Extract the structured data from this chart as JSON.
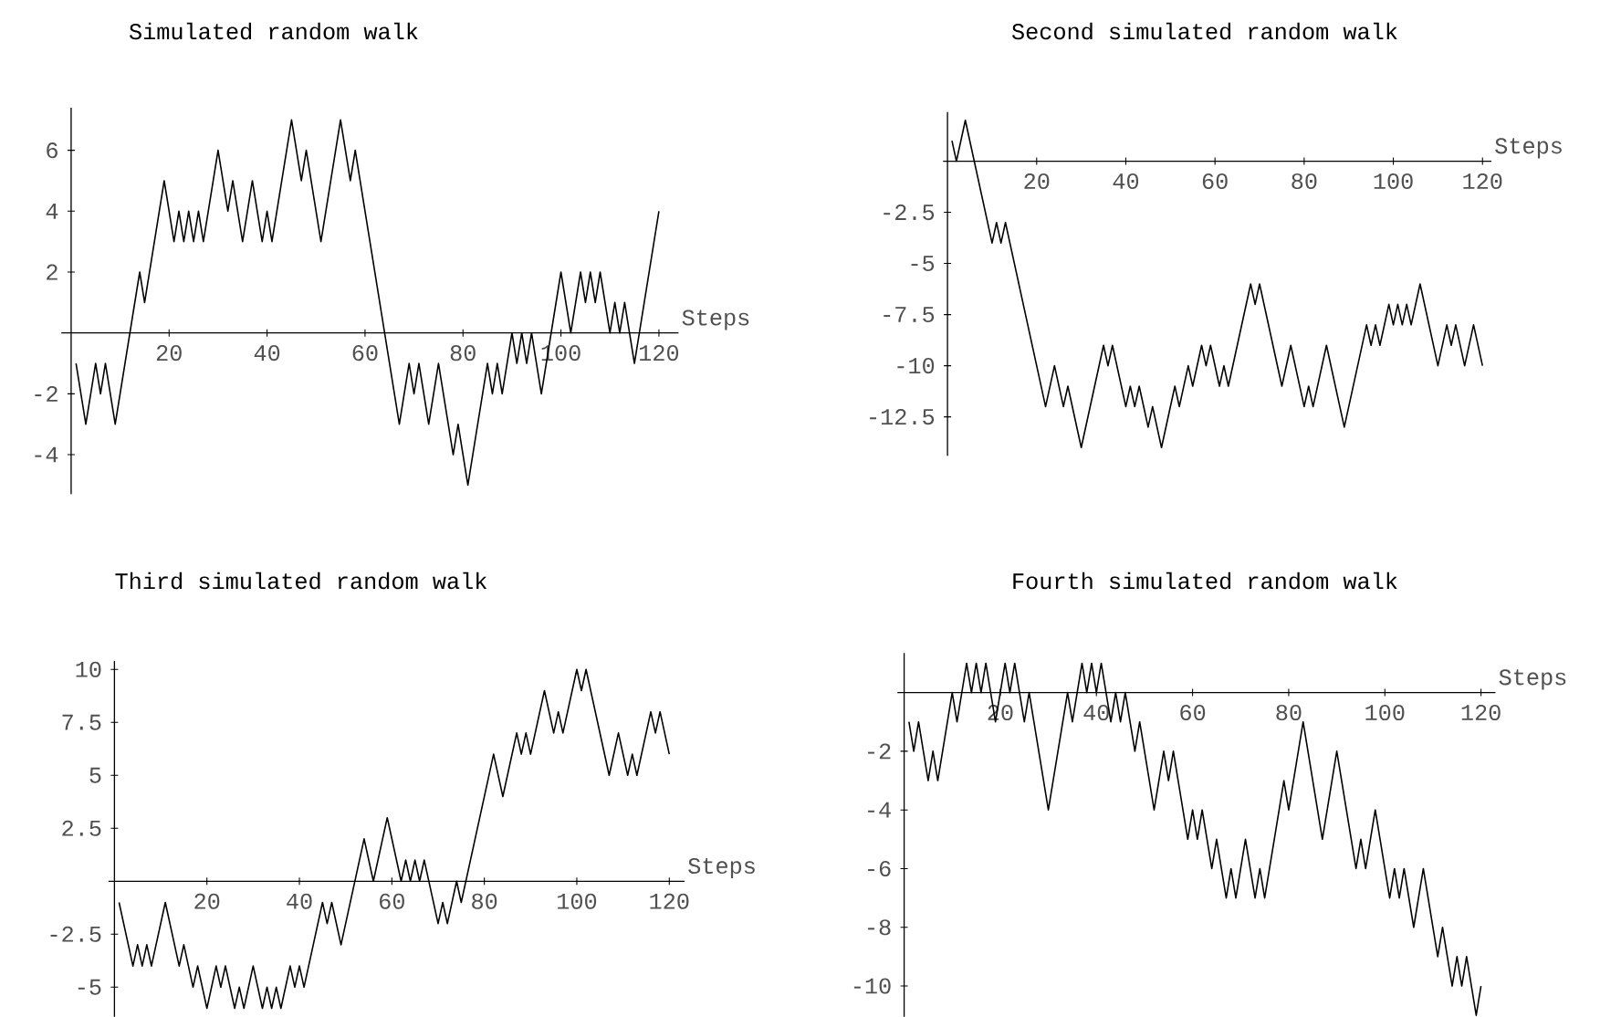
{
  "chart_data": [
    {
      "type": "line",
      "title": "Simulated random walk",
      "xlabel": "Steps",
      "color": "#000000",
      "x": [
        1,
        3,
        5,
        6,
        7,
        9,
        14,
        15,
        19,
        21,
        22,
        23,
        24,
        25,
        26,
        27,
        30,
        32,
        33,
        35,
        37,
        39,
        40,
        41,
        45,
        47,
        48,
        51,
        55,
        57,
        58,
        67,
        69,
        70,
        71,
        73,
        75,
        78,
        79,
        81,
        85,
        86,
        87,
        88,
        90,
        91,
        92,
        93,
        94,
        96,
        100,
        102,
        104,
        105,
        106,
        107,
        108,
        110,
        111,
        112,
        113,
        115,
        120
      ],
      "values": [
        -1,
        -3,
        -1,
        -2,
        -1,
        -3,
        2,
        1,
        5,
        3,
        4,
        3,
        4,
        3,
        4,
        3,
        6,
        4,
        5,
        3,
        5,
        3,
        4,
        3,
        7,
        5,
        6,
        3,
        7,
        5,
        6,
        -3,
        -1,
        -2,
        -1,
        -3,
        -1,
        -4,
        -3,
        -5,
        -1,
        -2,
        -1,
        -2,
        0,
        -1,
        0,
        -1,
        0,
        -2,
        2,
        0,
        2,
        1,
        2,
        1,
        2,
        0,
        1,
        0,
        1,
        -1,
        4
      ],
      "xlim": [
        -2,
        124
      ],
      "ylim": [
        -5.3,
        7.4
      ],
      "xticks": [
        20,
        40,
        60,
        80,
        100,
        120
      ],
      "yticks": [
        -4,
        -2,
        2,
        4,
        6
      ]
    },
    {
      "type": "line",
      "title": "Second simulated random walk",
      "xlabel": "Steps",
      "color": "#000000",
      "x": [
        1,
        2,
        4,
        10,
        11,
        12,
        13,
        22,
        24,
        26,
        27,
        30,
        35,
        36,
        37,
        40,
        41,
        42,
        43,
        45,
        46,
        48,
        51,
        52,
        54,
        55,
        57,
        58,
        59,
        61,
        62,
        63,
        68,
        69,
        70,
        75,
        77,
        80,
        81,
        82,
        85,
        89,
        94,
        95,
        96,
        97,
        99,
        100,
        101,
        102,
        103,
        104,
        106,
        110,
        112,
        113,
        114,
        116,
        118,
        120
      ],
      "values": [
        1,
        0,
        2,
        -4,
        -3,
        -4,
        -3,
        -12,
        -10,
        -12,
        -11,
        -14,
        -9,
        -10,
        -9,
        -12,
        -11,
        -12,
        -11,
        -13,
        -12,
        -14,
        -11,
        -12,
        -10,
        -11,
        -9,
        -10,
        -9,
        -11,
        -10,
        -11,
        -6,
        -7,
        -6,
        -11,
        -9,
        -12,
        -11,
        -12,
        -9,
        -13,
        -8,
        -9,
        -8,
        -9,
        -7,
        -8,
        -7,
        -8,
        -7,
        -8,
        -6,
        -10,
        -8,
        -9,
        -8,
        -10,
        -8,
        -10
      ],
      "xlim": [
        -1,
        122
      ],
      "ylim": [
        -14.4,
        2.4
      ],
      "xticks": [
        20,
        40,
        60,
        80,
        100,
        120
      ],
      "yticks": [
        -12.5,
        -10,
        -7.5,
        -5,
        -2.5
      ]
    },
    {
      "type": "line",
      "title": "Third simulated random walk",
      "xlabel": "Steps",
      "color": "#000000",
      "x": [
        1,
        4,
        5,
        6,
        7,
        8,
        11,
        14,
        15,
        17,
        18,
        20,
        22,
        23,
        24,
        26,
        27,
        28,
        30,
        32,
        33,
        34,
        35,
        36,
        38,
        39,
        40,
        41,
        45,
        46,
        47,
        49,
        54,
        56,
        59,
        62,
        63,
        64,
        65,
        66,
        67,
        70,
        71,
        72,
        74,
        75,
        82,
        84,
        87,
        88,
        89,
        90,
        93,
        95,
        96,
        97,
        100,
        101,
        102,
        107,
        109,
        111,
        112,
        113,
        116,
        117,
        118,
        120
      ],
      "values": [
        -1,
        -4,
        -3,
        -4,
        -3,
        -4,
        -1,
        -4,
        -3,
        -5,
        -4,
        -6,
        -4,
        -5,
        -4,
        -6,
        -5,
        -6,
        -4,
        -6,
        -5,
        -6,
        -5,
        -6,
        -4,
        -5,
        -4,
        -5,
        -1,
        -2,
        -1,
        -3,
        2,
        0,
        3,
        0,
        1,
        0,
        1,
        0,
        1,
        -2,
        -1,
        -2,
        0,
        -1,
        6,
        4,
        7,
        6,
        7,
        6,
        9,
        7,
        8,
        7,
        10,
        9,
        10,
        5,
        7,
        5,
        6,
        5,
        8,
        7,
        8,
        6
      ],
      "xlim": [
        -1.3,
        123.3
      ],
      "ylim": [
        -6.4,
        10.4
      ],
      "xticks": [
        20,
        40,
        60,
        80,
        100,
        120
      ],
      "yticks": [
        -5,
        -2.5,
        2.5,
        5,
        7.5,
        10
      ]
    },
    {
      "type": "line",
      "title": "Fourth simulated random walk",
      "xlabel": "Steps",
      "color": "#000000",
      "x": [
        1,
        2,
        3,
        5,
        6,
        7,
        10,
        11,
        13,
        14,
        15,
        16,
        17,
        19,
        21,
        22,
        23,
        25,
        26,
        30,
        34,
        35,
        37,
        38,
        39,
        40,
        41,
        43,
        44,
        45,
        46,
        48,
        49,
        52,
        54,
        55,
        56,
        59,
        60,
        61,
        62,
        64,
        65,
        67,
        68,
        69,
        71,
        73,
        74,
        75,
        79,
        80,
        83,
        87,
        90,
        94,
        95,
        96,
        98,
        101,
        102,
        103,
        104,
        106,
        108,
        111,
        112,
        114,
        115,
        116,
        117,
        119,
        120
      ],
      "values": [
        -1,
        -2,
        -1,
        -3,
        -2,
        -3,
        0,
        -1,
        1,
        0,
        1,
        0,
        1,
        -1,
        1,
        0,
        1,
        -1,
        0,
        -4,
        0,
        -1,
        1,
        0,
        1,
        0,
        1,
        -1,
        0,
        -1,
        0,
        -2,
        -1,
        -4,
        -2,
        -3,
        -2,
        -5,
        -4,
        -5,
        -4,
        -6,
        -5,
        -7,
        -6,
        -7,
        -5,
        -7,
        -6,
        -7,
        -3,
        -4,
        -1,
        -5,
        -2,
        -6,
        -5,
        -6,
        -4,
        -7,
        -6,
        -7,
        -6,
        -8,
        -6,
        -9,
        -8,
        -10,
        -9,
        -10,
        -9,
        -11,
        -10
      ],
      "xlim": [
        -1.4,
        123
      ],
      "ylim": [
        -11.05,
        1.35
      ],
      "xticks": [
        20,
        40,
        60,
        80,
        100,
        120
      ],
      "yticks": [
        -10,
        -8,
        -6,
        -4,
        -2
      ]
    }
  ]
}
